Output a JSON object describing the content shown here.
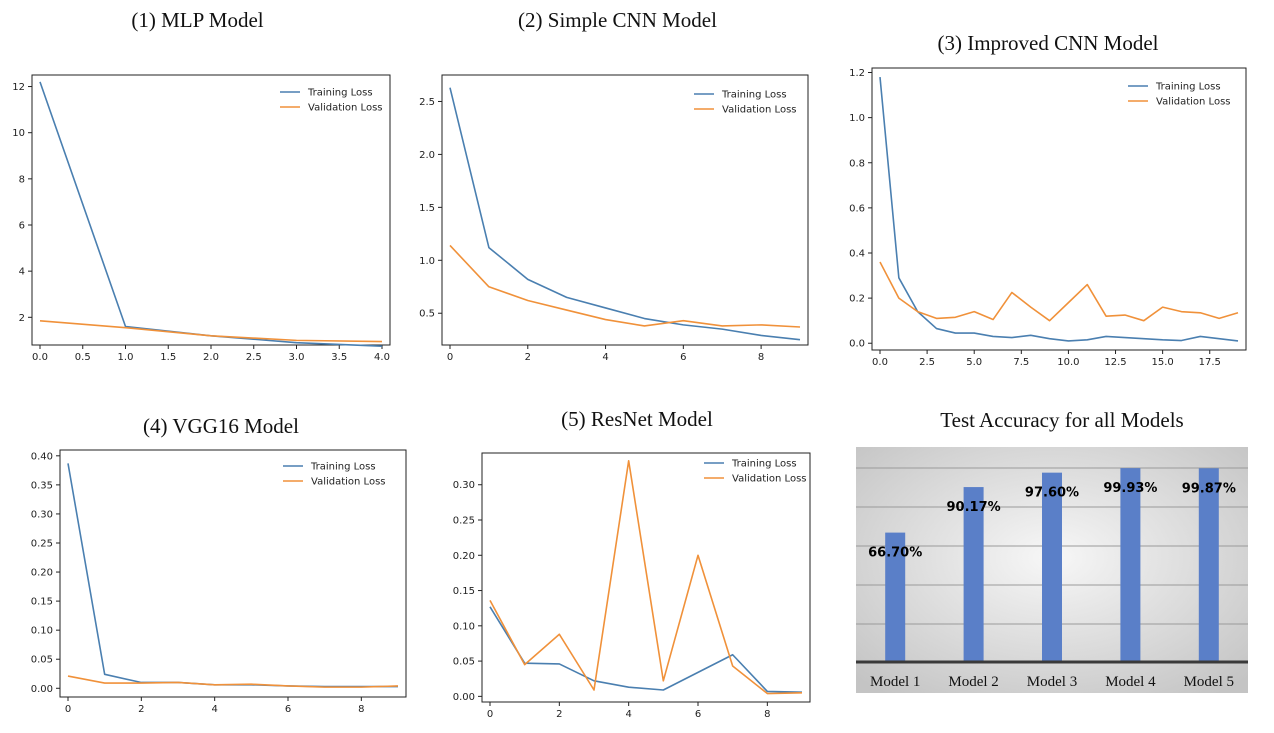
{
  "colors": {
    "training": "#4a7fb0",
    "validation": "#f0913a",
    "bar": "#5a7fc8"
  },
  "chart_data": [
    {
      "type": "line",
      "title": "(1) MLP Model",
      "x": [
        0,
        1,
        2,
        3,
        4
      ],
      "xlim": [
        0,
        4
      ],
      "ylim": [
        0.8,
        12.5
      ],
      "xticks": [
        0.0,
        0.5,
        1.0,
        1.5,
        2.0,
        2.5,
        3.0,
        3.5,
        4.0
      ],
      "xtick_labels": [
        "0.0",
        "0.5",
        "1.0",
        "1.5",
        "2.0",
        "2.5",
        "3.0",
        "3.5",
        "4.0"
      ],
      "yticks": [
        2,
        4,
        6,
        8,
        10,
        12
      ],
      "ytick_labels": [
        "2",
        "4",
        "6",
        "8",
        "10",
        "12"
      ],
      "legend": "top-right",
      "series": [
        {
          "name": "Training Loss",
          "values": [
            12.2,
            1.6,
            1.2,
            0.9,
            0.75
          ]
        },
        {
          "name": "Validation Loss",
          "values": [
            1.85,
            1.55,
            1.2,
            1.0,
            0.95
          ]
        }
      ]
    },
    {
      "type": "line",
      "title": "(2) Simple CNN Model",
      "x": [
        0,
        1,
        2,
        3,
        4,
        5,
        6,
        7,
        8,
        9
      ],
      "xlim": [
        0,
        9
      ],
      "ylim": [
        0.2,
        2.75
      ],
      "xticks": [
        0,
        2,
        4,
        6,
        8
      ],
      "xtick_labels": [
        "0",
        "2",
        "4",
        "6",
        "8"
      ],
      "yticks": [
        0.5,
        1.0,
        1.5,
        2.0,
        2.5
      ],
      "ytick_labels": [
        "0.5",
        "1.0",
        "1.5",
        "2.0",
        "2.5"
      ],
      "legend": "top-right",
      "series": [
        {
          "name": "Training Loss",
          "values": [
            2.63,
            1.12,
            0.82,
            0.65,
            0.55,
            0.45,
            0.39,
            0.35,
            0.29,
            0.25
          ]
        },
        {
          "name": "Validation Loss",
          "values": [
            1.14,
            0.75,
            0.62,
            0.53,
            0.44,
            0.38,
            0.43,
            0.38,
            0.39,
            0.37
          ]
        }
      ]
    },
    {
      "type": "line",
      "title": "(3) Improved CNN Model",
      "x": [
        0,
        1,
        2,
        3,
        4,
        5,
        6,
        7,
        8,
        9,
        10,
        11,
        12,
        13,
        14,
        15,
        16,
        17,
        18,
        19
      ],
      "xlim": [
        0,
        19
      ],
      "ylim": [
        -0.03,
        1.22
      ],
      "xticks": [
        0.0,
        2.5,
        5.0,
        7.5,
        10.0,
        12.5,
        15.0,
        17.5
      ],
      "xtick_labels": [
        "0.0",
        "2.5",
        "5.0",
        "7.5",
        "10.0",
        "12.5",
        "15.0",
        "17.5"
      ],
      "yticks": [
        0.0,
        0.2,
        0.4,
        0.6,
        0.8,
        1.0,
        1.2
      ],
      "ytick_labels": [
        "0.0",
        "0.2",
        "0.4",
        "0.6",
        "0.8",
        "1.0",
        "1.2"
      ],
      "legend": "top-right",
      "series": [
        {
          "name": "Training Loss",
          "values": [
            1.18,
            0.29,
            0.14,
            0.065,
            0.045,
            0.045,
            0.03,
            0.025,
            0.035,
            0.02,
            0.01,
            0.015,
            0.03,
            0.025,
            0.02,
            0.015,
            0.012,
            0.03,
            0.02,
            0.01
          ]
        },
        {
          "name": "Validation Loss",
          "values": [
            0.36,
            0.2,
            0.14,
            0.11,
            0.115,
            0.14,
            0.105,
            0.225,
            0.16,
            0.1,
            0.18,
            0.26,
            0.12,
            0.125,
            0.1,
            0.16,
            0.14,
            0.135,
            0.11,
            0.135
          ]
        }
      ]
    },
    {
      "type": "line",
      "title": "(4) VGG16 Model",
      "x": [
        0,
        1,
        2,
        3,
        4,
        5,
        6,
        7,
        8,
        9
      ],
      "xlim": [
        0,
        9
      ],
      "ylim": [
        -0.015,
        0.41
      ],
      "xticks": [
        0,
        2,
        4,
        6,
        8
      ],
      "xtick_labels": [
        "0",
        "2",
        "4",
        "6",
        "8"
      ],
      "yticks": [
        0.0,
        0.05,
        0.1,
        0.15,
        0.2,
        0.25,
        0.3,
        0.35,
        0.4
      ],
      "ytick_labels": [
        "0.00",
        "0.05",
        "0.10",
        "0.15",
        "0.20",
        "0.25",
        "0.30",
        "0.35",
        "0.40"
      ],
      "legend": "top-right",
      "series": [
        {
          "name": "Training Loss",
          "values": [
            0.387,
            0.024,
            0.01,
            0.01,
            0.006,
            0.006,
            0.004,
            0.003,
            0.003,
            0.003
          ]
        },
        {
          "name": "Validation Loss",
          "values": [
            0.021,
            0.009,
            0.009,
            0.01,
            0.006,
            0.007,
            0.004,
            0.002,
            0.002,
            0.004
          ]
        }
      ]
    },
    {
      "type": "line",
      "title": "(5) ResNet Model",
      "x": [
        0,
        1,
        2,
        3,
        4,
        5,
        6,
        7,
        8,
        9
      ],
      "xlim": [
        0,
        9
      ],
      "ylim": [
        -0.008,
        0.345
      ],
      "xticks": [
        0,
        2,
        4,
        6,
        8
      ],
      "xtick_labels": [
        "0",
        "2",
        "4",
        "6",
        "8"
      ],
      "yticks": [
        0.0,
        0.05,
        0.1,
        0.15,
        0.2,
        0.25,
        0.3
      ],
      "ytick_labels": [
        "0.00",
        "0.05",
        "0.10",
        "0.15",
        "0.20",
        "0.25",
        "0.30"
      ],
      "legend": "top-right",
      "series": [
        {
          "name": "Training Loss",
          "values": [
            0.127,
            0.047,
            0.046,
            0.022,
            0.013,
            0.009,
            0.034,
            0.059,
            0.007,
            0.006
          ]
        },
        {
          "name": "Validation Loss",
          "values": [
            0.136,
            0.045,
            0.088,
            0.009,
            0.334,
            0.022,
            0.2,
            0.043,
            0.004,
            0.005
          ]
        }
      ]
    },
    {
      "type": "bar",
      "title": "Test Accuracy for all Models",
      "categories": [
        "Model 1",
        "Model 2",
        "Model 3",
        "Model 4",
        "Model 5"
      ],
      "values": [
        66.7,
        90.17,
        97.6,
        99.93,
        99.87
      ],
      "data_labels": [
        "66.70%",
        "90.17%",
        "97.60%",
        "99.93%",
        "99.87%"
      ],
      "ylim": [
        0,
        100
      ]
    }
  ]
}
